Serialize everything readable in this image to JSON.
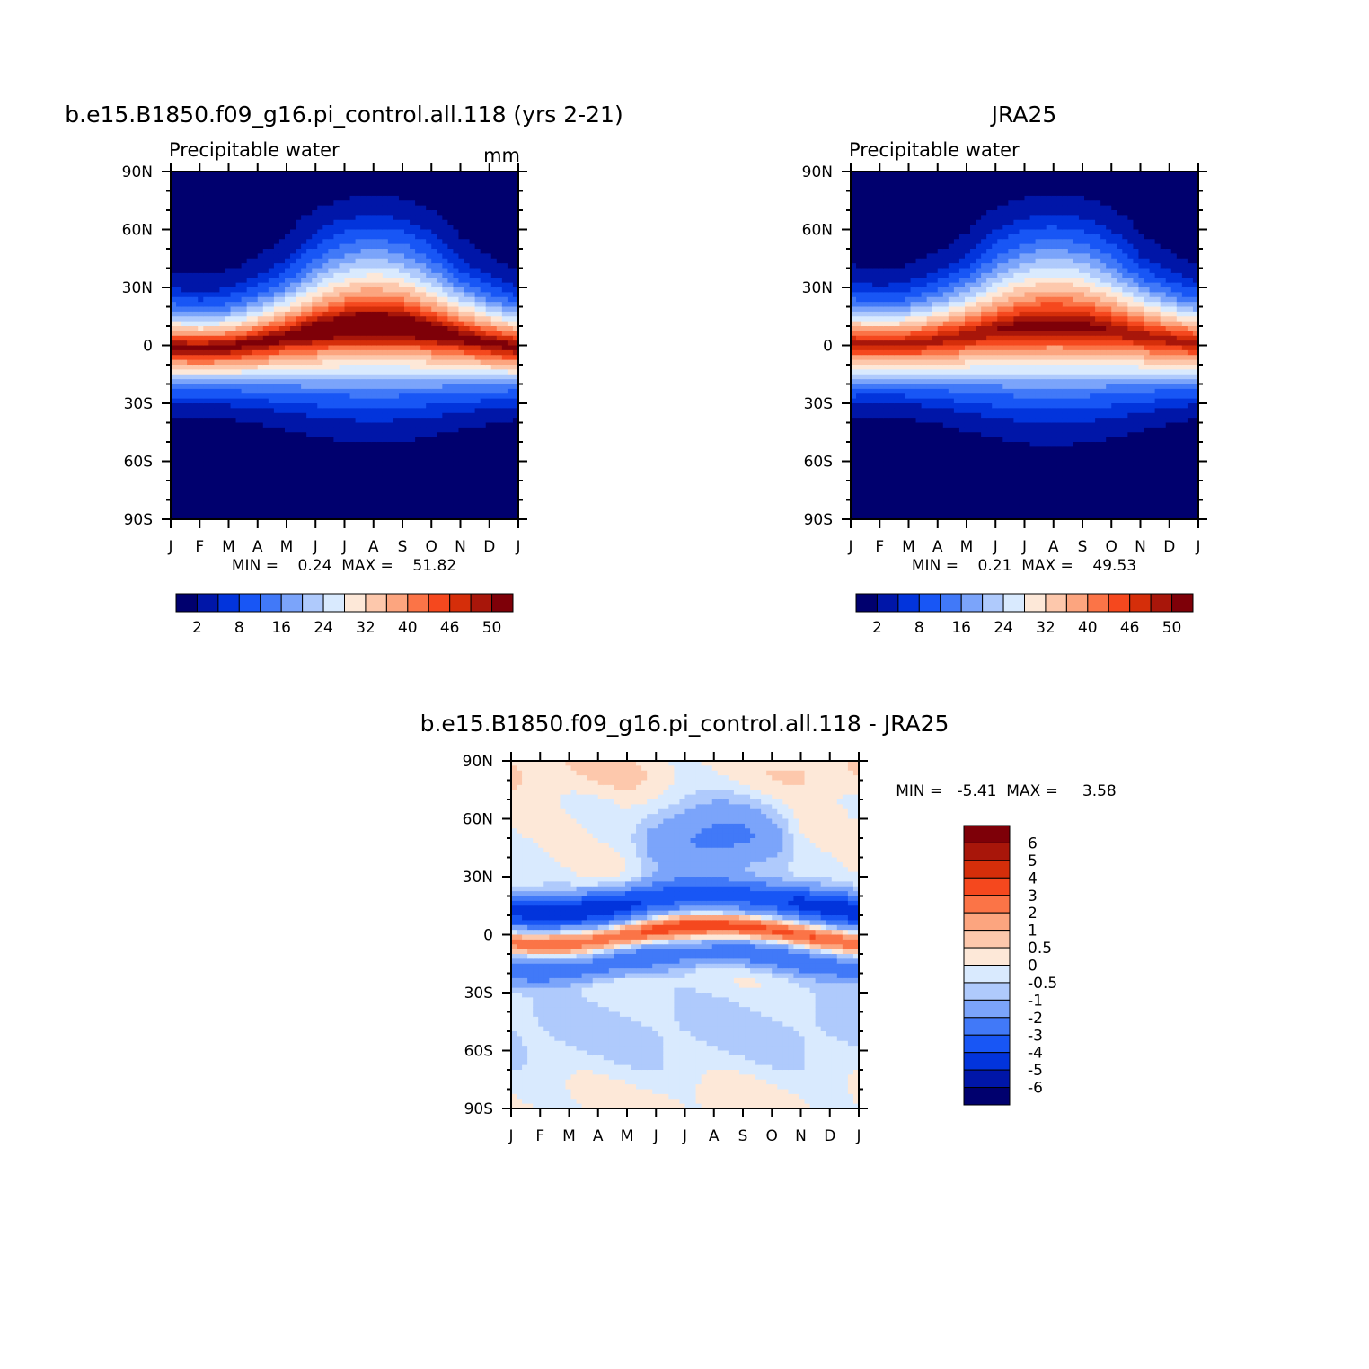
{
  "chart_data": [
    {
      "type": "heatmap",
      "title": "b.e15.B1850.f09_g16.pi_control.all.118 (yrs 2-21)",
      "subtitle": "Precipitable water",
      "units": "mm",
      "x_tick_labels": [
        "J",
        "F",
        "M",
        "A",
        "M",
        "J",
        "J",
        "A",
        "S",
        "O",
        "N",
        "D",
        "J"
      ],
      "y_tick_labels": [
        "90N",
        "60N",
        "30N",
        "0",
        "30S",
        "60S",
        "90S"
      ],
      "stats": "MIN =    0.24  MAX =    51.82",
      "min": 0.24,
      "max": 51.82,
      "legend_labels": [
        "2",
        "8",
        "16",
        "24",
        "32",
        "40",
        "46",
        "50"
      ],
      "legend_placement": "bottom",
      "contour_levels": [
        2,
        5,
        8,
        12,
        16,
        20,
        24,
        28,
        32,
        36,
        40,
        43,
        46,
        48,
        50
      ],
      "colors": [
        "#00006e",
        "#0016a8",
        "#0234dc",
        "#1856f5",
        "#4179f8",
        "#7ba4fa",
        "#afcafc",
        "#d9eafe",
        "#fde8d8",
        "#fdc8ac",
        "#fca57f",
        "#fb7447",
        "#f5481e",
        "#d52e0a",
        "#a8160a",
        "#7e0008"
      ],
      "model": {
        "eq_amp": 50.5,
        "eq_shift": 1.0,
        "lat_c": 4,
        "lat_amp": 6,
        "width_base": 23,
        "width_amp": 6,
        "power": 1.6,
        "boost_base": 0.0,
        "boost_amp": 1.8,
        "polar_n": 1.5,
        "polar_s": 0.3
      }
    },
    {
      "type": "heatmap",
      "title": "JRA25",
      "subtitle": "Precipitable water",
      "x_tick_labels": [
        "J",
        "F",
        "M",
        "A",
        "M",
        "J",
        "J",
        "A",
        "S",
        "O",
        "N",
        "D",
        "J"
      ],
      "y_tick_labels": [
        "90N",
        "60N",
        "30N",
        "0",
        "30S",
        "60S",
        "90S"
      ],
      "stats": "MIN =    0.21  MAX =    49.53",
      "min": 0.21,
      "max": 49.53,
      "legend_labels": [
        "2",
        "8",
        "16",
        "24",
        "32",
        "40",
        "46",
        "50"
      ],
      "legend_placement": "bottom",
      "contour_levels": [
        2,
        5,
        8,
        12,
        16,
        20,
        24,
        28,
        32,
        36,
        40,
        43,
        46,
        48,
        50
      ],
      "colors": [
        "#00006e",
        "#0016a8",
        "#0234dc",
        "#1856f5",
        "#4179f8",
        "#7ba4fa",
        "#afcafc",
        "#d9eafe",
        "#fde8d8",
        "#fdc8ac",
        "#fca57f",
        "#fb7447",
        "#f5481e",
        "#d52e0a",
        "#a8160a",
        "#7e0008"
      ],
      "model": {
        "eq_amp": 48.0,
        "eq_shift": 1.0,
        "lat_c": 5,
        "lat_amp": 5,
        "width_base": 24,
        "width_amp": 6,
        "power": 1.6,
        "boost_base": 0.4,
        "boost_amp": 1.0,
        "polar_n": 1.2,
        "polar_s": 0.2
      }
    },
    {
      "type": "heatmap",
      "title": "b.e15.B1850.f09_g16.pi_control.all.118 - JRA25",
      "x_tick_labels": [
        "J",
        "F",
        "M",
        "A",
        "M",
        "J",
        "J",
        "A",
        "S",
        "O",
        "N",
        "D",
        "J"
      ],
      "y_tick_labels": [
        "90N",
        "60N",
        "30N",
        "0",
        "30S",
        "60S",
        "90S"
      ],
      "stats": "MIN =   -5.41  MAX =     3.58",
      "min": -5.41,
      "max": 3.58,
      "legend_labels": [
        "6",
        "5",
        "4",
        "3",
        "2",
        "1",
        "0.5",
        "0",
        "-0.5",
        "-1",
        "-2",
        "-3",
        "-4",
        "-5",
        "-6"
      ],
      "legend_placement": "right",
      "contour_levels": [
        -6,
        -5,
        -4,
        -3,
        -2,
        -1,
        -0.5,
        0,
        0.5,
        1,
        2,
        3,
        4,
        5,
        6
      ],
      "colors": [
        "#00006e",
        "#0016a8",
        "#0234dc",
        "#1856f5",
        "#4179f8",
        "#7ba4fa",
        "#afcafc",
        "#d9eafe",
        "#fde8d8",
        "#fdc8ac",
        "#fca57f",
        "#fb7447",
        "#f5481e",
        "#d52e0a",
        "#a8160a",
        "#7e0008"
      ]
    }
  ]
}
